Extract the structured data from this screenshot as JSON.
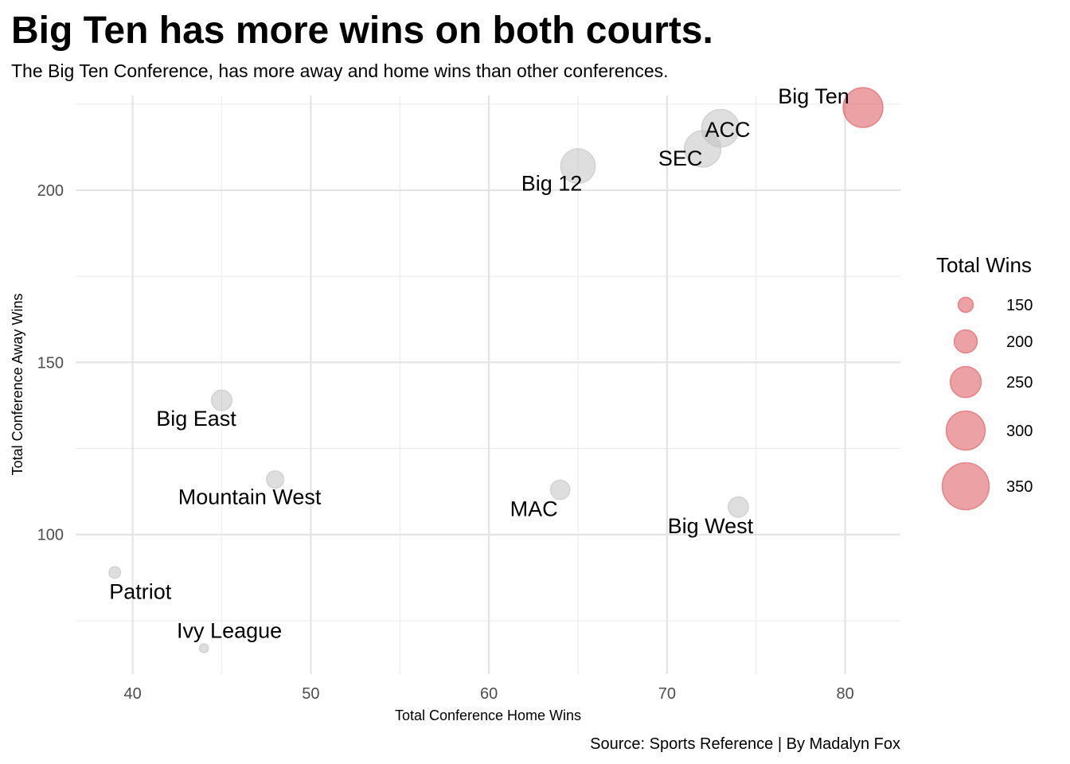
{
  "chart_data": {
    "type": "scatter",
    "title": "Big Ten has more wins on both courts.",
    "subtitle": "The Big Ten Conference, has more away and home wins than other conferences.",
    "xlabel": "Total Conference Home Wins",
    "ylabel": "Total Conference Away Wins",
    "caption": "Source: Sports Reference | By Madalyn Fox",
    "xlim": [
      36.8,
      83.1
    ],
    "ylim": [
      59.5,
      227.5
    ],
    "x_ticks": [
      40,
      50,
      60,
      70,
      80
    ],
    "y_ticks": [
      100,
      150,
      200
    ],
    "grid": true,
    "highlight_color": "#e06468",
    "base_color": "#bdbdbd",
    "points": [
      {
        "label": "Big Ten",
        "x": 81,
        "y": 224,
        "total": 305,
        "highlight": true
      },
      {
        "label": "ACC",
        "x": 73,
        "y": 218,
        "total": 291,
        "highlight": false
      },
      {
        "label": "SEC",
        "x": 72,
        "y": 212,
        "total": 284,
        "highlight": false
      },
      {
        "label": "Big 12",
        "x": 65,
        "y": 207,
        "total": 272,
        "highlight": false
      },
      {
        "label": "Big East",
        "x": 45,
        "y": 139,
        "total": 184,
        "highlight": false
      },
      {
        "label": "Mountain West",
        "x": 48,
        "y": 116,
        "total": 164,
        "highlight": false
      },
      {
        "label": "MAC",
        "x": 64,
        "y": 113,
        "total": 177,
        "highlight": false
      },
      {
        "label": "Big West",
        "x": 74,
        "y": 108,
        "total": 182,
        "highlight": false
      },
      {
        "label": "Patriot",
        "x": 39,
        "y": 89,
        "total": 128,
        "highlight": false
      },
      {
        "label": "Ivy League",
        "x": 44,
        "y": 67,
        "total": 111,
        "highlight": false
      }
    ],
    "legend": {
      "title": "Total Wins",
      "position": "right",
      "values": [
        150,
        200,
        250,
        300,
        350
      ]
    }
  }
}
